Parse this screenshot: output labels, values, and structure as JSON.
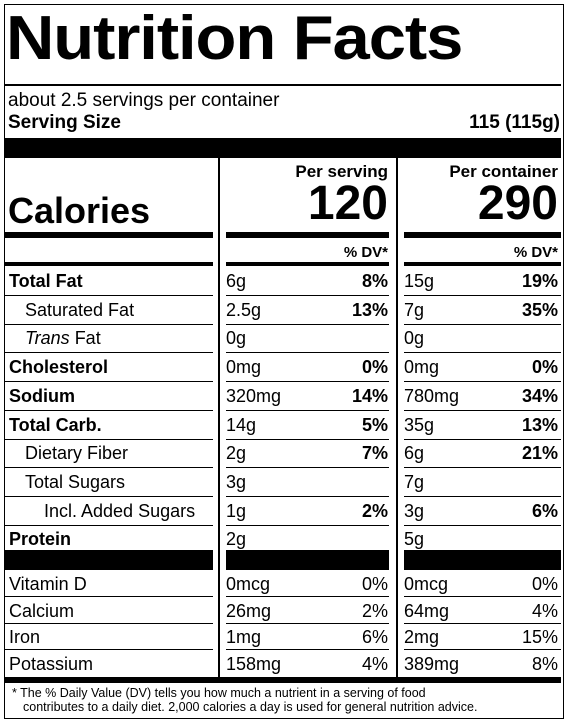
{
  "title": "Nutrition Facts",
  "servings": "about 2.5 servings per container",
  "serving_size_label": "Serving Size",
  "serving_size_value": "115 (115g)",
  "per_serving_label": "Per serving",
  "per_container_label": "Per container",
  "calories_label": "Calories",
  "calories_serving": "120",
  "calories_container": "290",
  "dv_label": "% DV*",
  "nutrients": [
    {
      "name": "Total Fat",
      "bold": true,
      "indent": 0,
      "s_amt": "6g",
      "s_dv": "8%",
      "c_amt": "15g",
      "c_dv": "19%"
    },
    {
      "name": "Saturated Fat",
      "bold": false,
      "indent": 1,
      "s_amt": "2.5g",
      "s_dv": "13%",
      "c_amt": "7g",
      "c_dv": "35%"
    },
    {
      "name_italic": "Trans",
      "name": " Fat",
      "bold": false,
      "indent": 1,
      "s_amt": "0g",
      "s_dv": "",
      "c_amt": "0g",
      "c_dv": ""
    },
    {
      "name": "Cholesterol",
      "bold": true,
      "indent": 0,
      "s_amt": "0mg",
      "s_dv": "0%",
      "c_amt": "0mg",
      "c_dv": "0%"
    },
    {
      "name": "Sodium",
      "bold": true,
      "indent": 0,
      "s_amt": "320mg",
      "s_dv": "14%",
      "c_amt": "780mg",
      "c_dv": "34%"
    },
    {
      "name": "Total Carb.",
      "bold": true,
      "indent": 0,
      "s_amt": "14g",
      "s_dv": "5%",
      "c_amt": "35g",
      "c_dv": "13%"
    },
    {
      "name": "Dietary Fiber",
      "bold": false,
      "indent": 1,
      "s_amt": "2g",
      "s_dv": "7%",
      "c_amt": "6g",
      "c_dv": "21%"
    },
    {
      "name": "Total Sugars",
      "bold": false,
      "indent": 1,
      "s_amt": "3g",
      "s_dv": "",
      "c_amt": "7g",
      "c_dv": ""
    },
    {
      "name": "Incl. Added Sugars",
      "bold": false,
      "indent": 2,
      "s_amt": "1g",
      "s_dv": "2%",
      "c_amt": "3g",
      "c_dv": "6%"
    },
    {
      "name": "Protein",
      "bold": true,
      "indent": 0,
      "s_amt": "2g",
      "s_dv": "",
      "c_amt": "5g",
      "c_dv": ""
    }
  ],
  "vitamins": [
    {
      "name": "Vitamin D",
      "s_amt": "0mcg",
      "s_dv": "0%",
      "c_amt": "0mcg",
      "c_dv": "0%"
    },
    {
      "name": "Calcium",
      "s_amt": "26mg",
      "s_dv": "2%",
      "c_amt": "64mg",
      "c_dv": "4%"
    },
    {
      "name": "Iron",
      "s_amt": "1mg",
      "s_dv": "6%",
      "c_amt": "2mg",
      "c_dv": "15%"
    },
    {
      "name": "Potassium",
      "s_amt": "158mg",
      "s_dv": "4%",
      "c_amt": "389mg",
      "c_dv": "8%"
    }
  ],
  "footnote_line1": "* The % Daily Value (DV) tells you how much a nutrient in a serving of food",
  "footnote_line2": "contributes to a daily diet. 2,000 calories a day is used for general nutrition advice."
}
